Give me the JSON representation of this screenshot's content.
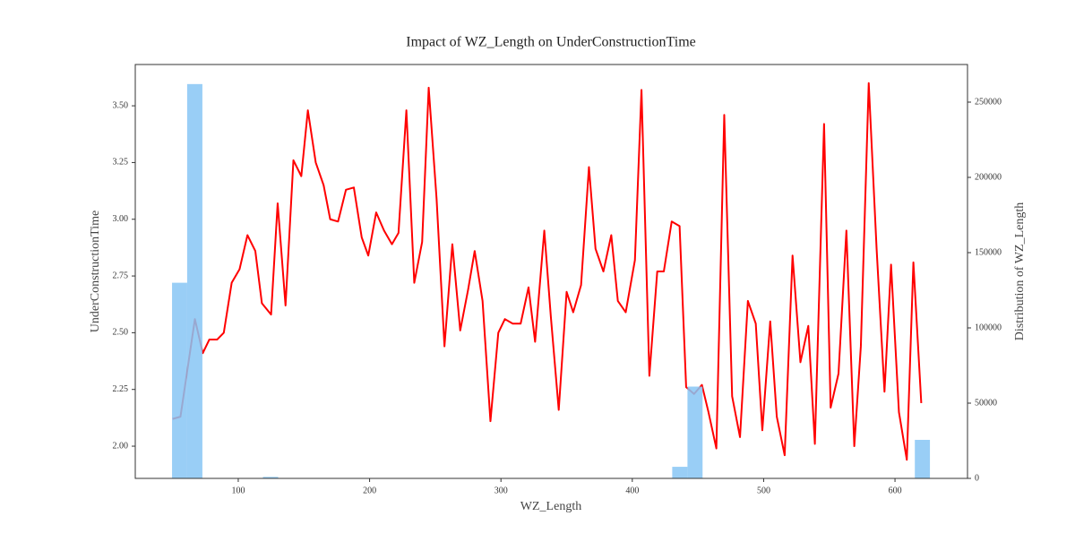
{
  "chart_data": {
    "type": "line",
    "title": "Impact of WZ_Length on UnderConstructionTime",
    "xlabel": "WZ_Length",
    "ylabel": "UnderConstructionTime",
    "y2label": "Distribution of WZ_Length",
    "color": "#ff0000",
    "x": [
      50,
      56,
      67,
      73,
      78,
      84,
      89,
      95,
      101,
      107,
      113,
      118,
      125,
      130,
      136,
      142,
      148,
      153,
      159,
      165,
      170,
      176,
      182,
      188,
      194,
      199,
      205,
      211,
      217,
      222,
      228,
      234,
      240,
      245,
      251,
      257,
      263,
      269,
      275,
      280,
      286,
      292,
      298,
      303,
      309,
      315,
      321,
      326,
      333,
      338,
      344,
      350,
      355,
      361,
      367,
      372,
      378,
      384,
      389,
      395,
      402,
      407,
      413,
      419,
      424,
      430,
      436,
      441,
      447,
      453,
      458,
      464,
      470,
      476,
      482,
      488,
      494,
      499,
      505,
      510,
      516,
      522,
      528,
      534,
      539,
      546,
      551,
      557,
      563,
      569,
      574,
      580,
      586,
      592,
      597,
      603,
      609,
      614,
      620
    ],
    "values": [
      2.12,
      2.13,
      2.56,
      2.41,
      2.47,
      2.47,
      2.5,
      2.72,
      2.78,
      2.93,
      2.86,
      2.63,
      2.58,
      3.07,
      2.62,
      3.26,
      3.19,
      3.48,
      3.25,
      3.15,
      3.0,
      2.99,
      3.13,
      3.14,
      2.92,
      2.84,
      3.03,
      2.95,
      2.89,
      2.94,
      3.48,
      2.72,
      2.9,
      3.58,
      3.09,
      2.44,
      2.89,
      2.51,
      2.69,
      2.86,
      2.64,
      2.11,
      2.5,
      2.56,
      2.54,
      2.54,
      2.7,
      2.46,
      2.95,
      2.57,
      2.16,
      2.68,
      2.59,
      2.71,
      3.23,
      2.87,
      2.77,
      2.93,
      2.64,
      2.59,
      2.82,
      3.57,
      2.31,
      2.77,
      2.77,
      2.99,
      2.97,
      2.26,
      2.23,
      2.27,
      2.15,
      1.99,
      3.46,
      2.22,
      2.04,
      2.64,
      2.54,
      2.07,
      2.55,
      2.13,
      1.96,
      2.84,
      2.37,
      2.53,
      2.01,
      3.42,
      2.17,
      2.32,
      2.95,
      2.0,
      2.44,
      3.6,
      2.87,
      2.24,
      2.8,
      2.15,
      1.94,
      2.81,
      2.19
    ],
    "xlim": [
      21.6,
      655.2
    ],
    "xticks": [
      100,
      200,
      300,
      400,
      500,
      600
    ],
    "ylim": [
      1.858,
      3.682
    ],
    "yticks": [
      {
        "value": 2,
        "label": "2.00"
      },
      {
        "value": 2.25,
        "label": "2.25"
      },
      {
        "value": 2.5,
        "label": "2.50"
      },
      {
        "value": 2.75,
        "label": "2.75"
      },
      {
        "value": 3,
        "label": "3.00"
      },
      {
        "value": 3.25,
        "label": "3.25"
      },
      {
        "value": 3.5,
        "label": "3.50"
      }
    ],
    "y2lim": [
      0,
      275000
    ],
    "y2ticks": [
      0,
      50000,
      100000,
      150000,
      200000,
      250000
    ],
    "histogram": {
      "type": "histogram",
      "axis": "y2",
      "color": "#87c6f5",
      "bins": [
        49.6,
        61.1,
        72.7,
        84.2,
        95.8,
        107.3,
        118.8,
        130.4,
        141.9,
        153.5,
        165.0,
        176.5,
        188.1,
        199.6,
        211.2,
        222.7,
        234.2,
        245.8,
        257.3,
        268.9,
        280.4,
        291.9,
        303.5,
        315.0,
        326.6,
        338.1,
        349.6,
        361.2,
        372.7,
        384.3,
        395.8,
        407.3,
        418.9,
        430.4,
        442.0,
        453.5,
        465.0,
        476.6,
        488.1,
        499.7,
        511.2,
        522.7,
        534.3,
        545.8,
        557.4,
        568.9,
        580.4,
        592.0,
        603.5,
        615.1,
        626.6
      ],
      "counts": [
        130000,
        262000,
        0,
        0,
        0,
        0,
        1000,
        0,
        0,
        0,
        0,
        0,
        0,
        0,
        0,
        0,
        0,
        0,
        0,
        0,
        0,
        0,
        0,
        0,
        0,
        0,
        0,
        0,
        0,
        0,
        0,
        0,
        0,
        7700,
        61000,
        0,
        0,
        0,
        0,
        0,
        0,
        0,
        0,
        0,
        0,
        0,
        0,
        0,
        0,
        25600
      ]
    }
  }
}
